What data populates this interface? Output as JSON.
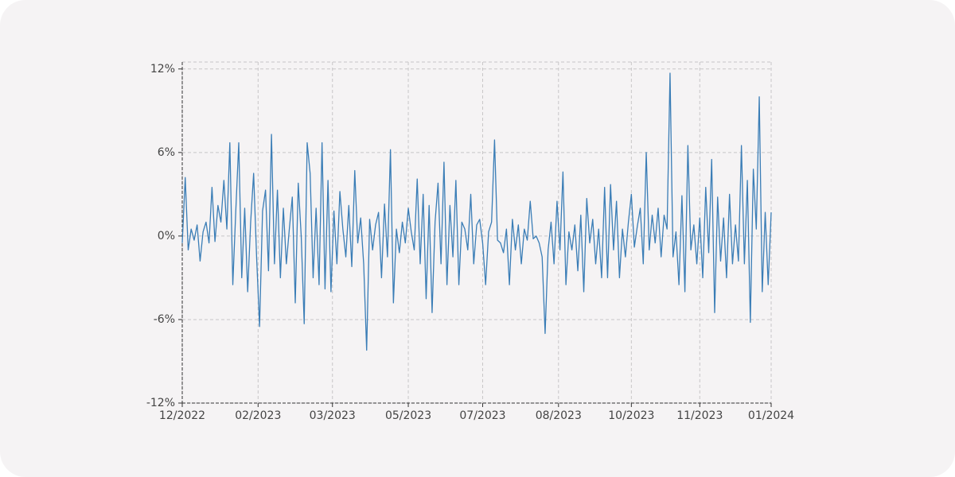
{
  "chart_data": {
    "type": "line",
    "color": "#3a7db6",
    "grid": true,
    "xlim": [
      0,
      396
    ],
    "ylim": [
      -12,
      12.5
    ],
    "xticks": [
      {
        "value": 0,
        "label": "12/2022"
      },
      {
        "value": 51,
        "label": "02/2023"
      },
      {
        "value": 101,
        "label": "03/2023"
      },
      {
        "value": 152,
        "label": "05/2023"
      },
      {
        "value": 202,
        "label": "07/2023"
      },
      {
        "value": 253,
        "label": "08/2023"
      },
      {
        "value": 302,
        "label": "10/2023"
      },
      {
        "value": 348,
        "label": "11/2023"
      },
      {
        "value": 396,
        "label": "01/2024"
      }
    ],
    "yticks": [
      {
        "value": 12,
        "label": "12%"
      },
      {
        "value": 6,
        "label": "6%"
      },
      {
        "value": 0,
        "label": "0%"
      },
      {
        "value": -6,
        "label": "-6%"
      },
      {
        "value": -12,
        "label": "-12%"
      }
    ],
    "x": [
      0,
      2,
      4,
      6,
      8,
      10,
      12,
      14,
      16,
      18,
      20,
      22,
      24,
      26,
      28,
      30,
      32,
      34,
      36,
      38,
      40,
      42,
      44,
      46,
      48,
      50,
      52,
      54,
      56,
      58,
      60,
      62,
      64,
      66,
      68,
      70,
      72,
      74,
      76,
      78,
      80,
      82,
      84,
      86,
      88,
      90,
      92,
      94,
      96,
      98,
      100,
      102,
      104,
      106,
      108,
      110,
      112,
      114,
      116,
      118,
      120,
      122,
      124,
      126,
      128,
      130,
      132,
      134,
      136,
      138,
      140,
      142,
      144,
      146,
      148,
      150,
      152,
      154,
      156,
      158,
      160,
      162,
      164,
      166,
      168,
      170,
      172,
      174,
      176,
      178,
      180,
      182,
      184,
      186,
      188,
      190,
      192,
      194,
      196,
      198,
      200,
      202,
      204,
      206,
      208,
      210,
      212,
      214,
      216,
      218,
      220,
      222,
      224,
      226,
      228,
      230,
      232,
      234,
      236,
      238,
      240,
      242,
      244,
      246,
      248,
      250,
      252,
      254,
      256,
      258,
      260,
      262,
      264,
      266,
      268,
      270,
      272,
      274,
      276,
      278,
      280,
      282,
      284,
      286,
      288,
      290,
      292,
      294,
      296,
      298,
      300,
      302,
      304,
      306,
      308,
      310,
      312,
      314,
      316,
      318,
      320,
      322,
      324,
      326,
      328,
      330,
      332,
      334,
      336,
      338,
      340,
      342,
      344,
      346,
      348,
      350,
      352,
      354,
      356,
      358,
      360,
      362,
      364,
      366,
      368,
      370,
      372,
      374,
      376,
      378,
      380,
      382,
      384,
      386,
      388,
      390,
      392,
      394,
      396
    ],
    "values": [
      -0.5,
      4.2,
      -1.0,
      0.5,
      -0.3,
      0.8,
      -1.8,
      0.3,
      1.0,
      -0.5,
      3.5,
      -0.4,
      2.2,
      1.0,
      4.0,
      0.5,
      6.7,
      -3.5,
      1.8,
      6.7,
      -3.0,
      2.0,
      -4.0,
      1.0,
      4.5,
      -1.5,
      -6.5,
      1.8,
      3.3,
      -2.5,
      7.3,
      -2.0,
      3.3,
      -3.0,
      2.0,
      -2.0,
      0.5,
      2.8,
      -4.8,
      3.8,
      0.0,
      -6.3,
      6.7,
      4.5,
      -3.0,
      2.0,
      -3.5,
      6.7,
      -3.8,
      4.0,
      -4.0,
      1.8,
      -2.0,
      3.2,
      0.5,
      -1.5,
      2.2,
      -2.2,
      4.7,
      -0.5,
      1.3,
      -2.0,
      -8.2,
      1.2,
      -1.0,
      0.8,
      1.7,
      -3.0,
      2.3,
      -1.5,
      6.2,
      -4.8,
      0.5,
      -1.2,
      1.0,
      -0.5,
      2.0,
      0.3,
      -1.0,
      4.1,
      -2.0,
      3.0,
      -4.5,
      2.2,
      -5.5,
      1.0,
      3.8,
      -2.0,
      5.3,
      -3.5,
      2.2,
      -1.5,
      4.0,
      -3.5,
      1.0,
      0.5,
      -1.0,
      3.0,
      -2.0,
      0.8,
      1.2,
      -0.5,
      -3.5,
      0.3,
      1.0,
      6.9,
      -0.3,
      -0.5,
      -1.2,
      0.5,
      -3.5,
      1.2,
      -1.0,
      0.8,
      -2.0,
      0.5,
      -0.3,
      2.5,
      -0.2,
      0.0,
      -0.5,
      -1.5,
      -7.0,
      -1.0,
      1.0,
      -2.0,
      2.5,
      -1.0,
      4.6,
      -3.5,
      0.3,
      -1.0,
      0.8,
      -2.5,
      1.5,
      -4.0,
      2.7,
      -0.5,
      1.2,
      -2.0,
      0.5,
      -3.0,
      3.5,
      -3.0,
      3.7,
      -1.0,
      2.5,
      -3.0,
      0.5,
      -1.5,
      1.0,
      3.0,
      -0.8,
      0.7,
      2.0,
      -2.0,
      6.0,
      -1.0,
      1.5,
      -0.5,
      2.0,
      -1.5,
      1.5,
      0.5,
      11.7,
      -1.5,
      0.3,
      -3.5,
      2.9,
      -4.0,
      6.5,
      -1.0,
      0.8,
      -2.0,
      1.3,
      -3.0,
      3.5,
      -1.2,
      5.5,
      -5.5,
      2.8,
      -1.8,
      1.3,
      -3.0,
      3.0,
      -2.0,
      0.8,
      -1.8,
      6.5,
      -2.0,
      4.0,
      -6.2,
      4.8,
      0.5,
      10.0,
      -4.0,
      1.7,
      -3.5,
      1.7
    ]
  }
}
